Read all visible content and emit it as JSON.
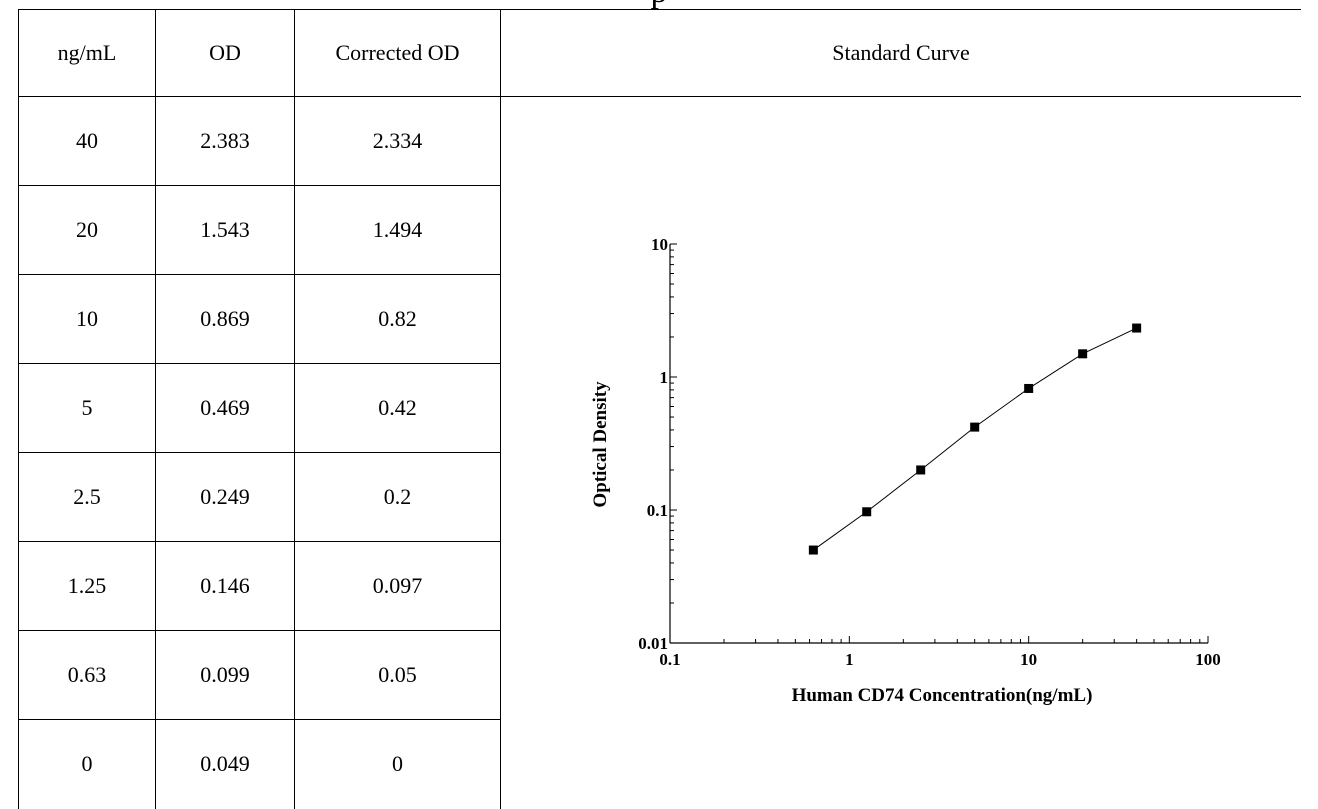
{
  "title": "p",
  "table": {
    "headers": [
      "ng/mL",
      "OD",
      "Corrected OD"
    ],
    "chart_header": "Standard Curve",
    "rows": [
      [
        "40",
        "2.383",
        "2.334"
      ],
      [
        "20",
        "1.543",
        "1.494"
      ],
      [
        "10",
        "0.869",
        "0.82"
      ],
      [
        "5",
        "0.469",
        "0.42"
      ],
      [
        "2.5",
        "0.249",
        "0.2"
      ],
      [
        "1.25",
        "0.146",
        "0.097"
      ],
      [
        "0.63",
        "0.099",
        "0.05"
      ],
      [
        "0",
        "0.049",
        "0"
      ]
    ]
  },
  "chart_data": {
    "type": "line",
    "title": "Standard Curve",
    "xlabel": "Human CD74 Concentration(ng/mL)",
    "ylabel": "Optical Density",
    "x_scale": "log",
    "y_scale": "log",
    "xlim": [
      0.1,
      100
    ],
    "ylim": [
      0.01,
      10
    ],
    "x_ticks": [
      "0.1",
      "1",
      "10",
      "100"
    ],
    "y_ticks": [
      "0.01",
      "0.1",
      "1",
      "10"
    ],
    "grid": false,
    "marker": "square",
    "series": [
      {
        "x": [
          0.63,
          1.25,
          2.5,
          5,
          10,
          20,
          40
        ],
        "y": [
          0.05,
          0.097,
          0.2,
          0.42,
          0.82,
          1.494,
          2.334
        ]
      }
    ]
  }
}
